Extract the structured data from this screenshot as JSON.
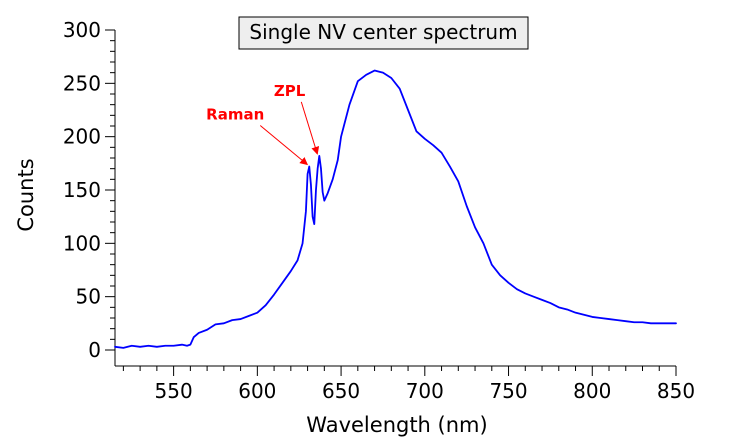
{
  "chart_data": {
    "type": "line",
    "title": "Single NV center spectrum",
    "xlabel": "Wavelength (nm)",
    "ylabel": "Counts",
    "xlim": [
      515,
      850
    ],
    "ylim": [
      -15,
      300
    ],
    "xticks": [
      550,
      600,
      650,
      700,
      750,
      800,
      850
    ],
    "yticks": [
      0,
      50,
      100,
      150,
      200,
      250,
      300
    ],
    "grid": false,
    "series_color": "#0000ff",
    "annotation_color": "#ff0000",
    "series": [
      {
        "name": "",
        "points": [
          [
            515,
            3
          ],
          [
            520,
            2
          ],
          [
            525,
            4
          ],
          [
            530,
            3
          ],
          [
            535,
            4
          ],
          [
            540,
            3
          ],
          [
            545,
            4
          ],
          [
            550,
            4
          ],
          [
            555,
            5
          ],
          [
            558,
            4
          ],
          [
            560,
            5
          ],
          [
            562,
            12
          ],
          [
            565,
            16
          ],
          [
            570,
            19
          ],
          [
            575,
            24
          ],
          [
            580,
            25
          ],
          [
            585,
            28
          ],
          [
            590,
            29
          ],
          [
            595,
            32
          ],
          [
            600,
            35
          ],
          [
            605,
            42
          ],
          [
            610,
            52
          ],
          [
            615,
            63
          ],
          [
            620,
            74
          ],
          [
            624,
            84
          ],
          [
            627,
            100
          ],
          [
            629,
            130
          ],
          [
            630,
            165
          ],
          [
            631,
            172
          ],
          [
            632,
            155
          ],
          [
            633,
            125
          ],
          [
            634,
            118
          ],
          [
            635,
            150
          ],
          [
            636,
            170
          ],
          [
            637,
            182
          ],
          [
            638,
            170
          ],
          [
            639,
            148
          ],
          [
            640,
            140
          ],
          [
            642,
            147
          ],
          [
            645,
            160
          ],
          [
            648,
            178
          ],
          [
            650,
            200
          ],
          [
            655,
            230
          ],
          [
            660,
            252
          ],
          [
            665,
            258
          ],
          [
            670,
            262
          ],
          [
            675,
            260
          ],
          [
            680,
            255
          ],
          [
            685,
            245
          ],
          [
            690,
            225
          ],
          [
            695,
            205
          ],
          [
            700,
            198
          ],
          [
            705,
            192
          ],
          [
            710,
            185
          ],
          [
            715,
            172
          ],
          [
            720,
            158
          ],
          [
            725,
            135
          ],
          [
            730,
            115
          ],
          [
            735,
            100
          ],
          [
            740,
            80
          ],
          [
            745,
            70
          ],
          [
            750,
            63
          ],
          [
            755,
            57
          ],
          [
            760,
            53
          ],
          [
            765,
            50
          ],
          [
            770,
            47
          ],
          [
            775,
            44
          ],
          [
            780,
            40
          ],
          [
            785,
            38
          ],
          [
            790,
            35
          ],
          [
            795,
            33
          ],
          [
            800,
            31
          ],
          [
            805,
            30
          ],
          [
            810,
            29
          ],
          [
            815,
            28
          ],
          [
            820,
            27
          ],
          [
            825,
            26
          ],
          [
            830,
            26
          ],
          [
            835,
            25
          ],
          [
            840,
            25
          ],
          [
            845,
            25
          ],
          [
            850,
            25
          ]
        ]
      }
    ],
    "annotations": [
      {
        "text": "ZPL",
        "target": [
          637,
          182
        ]
      },
      {
        "text": "Raman",
        "target": [
          631,
          172
        ]
      }
    ]
  }
}
